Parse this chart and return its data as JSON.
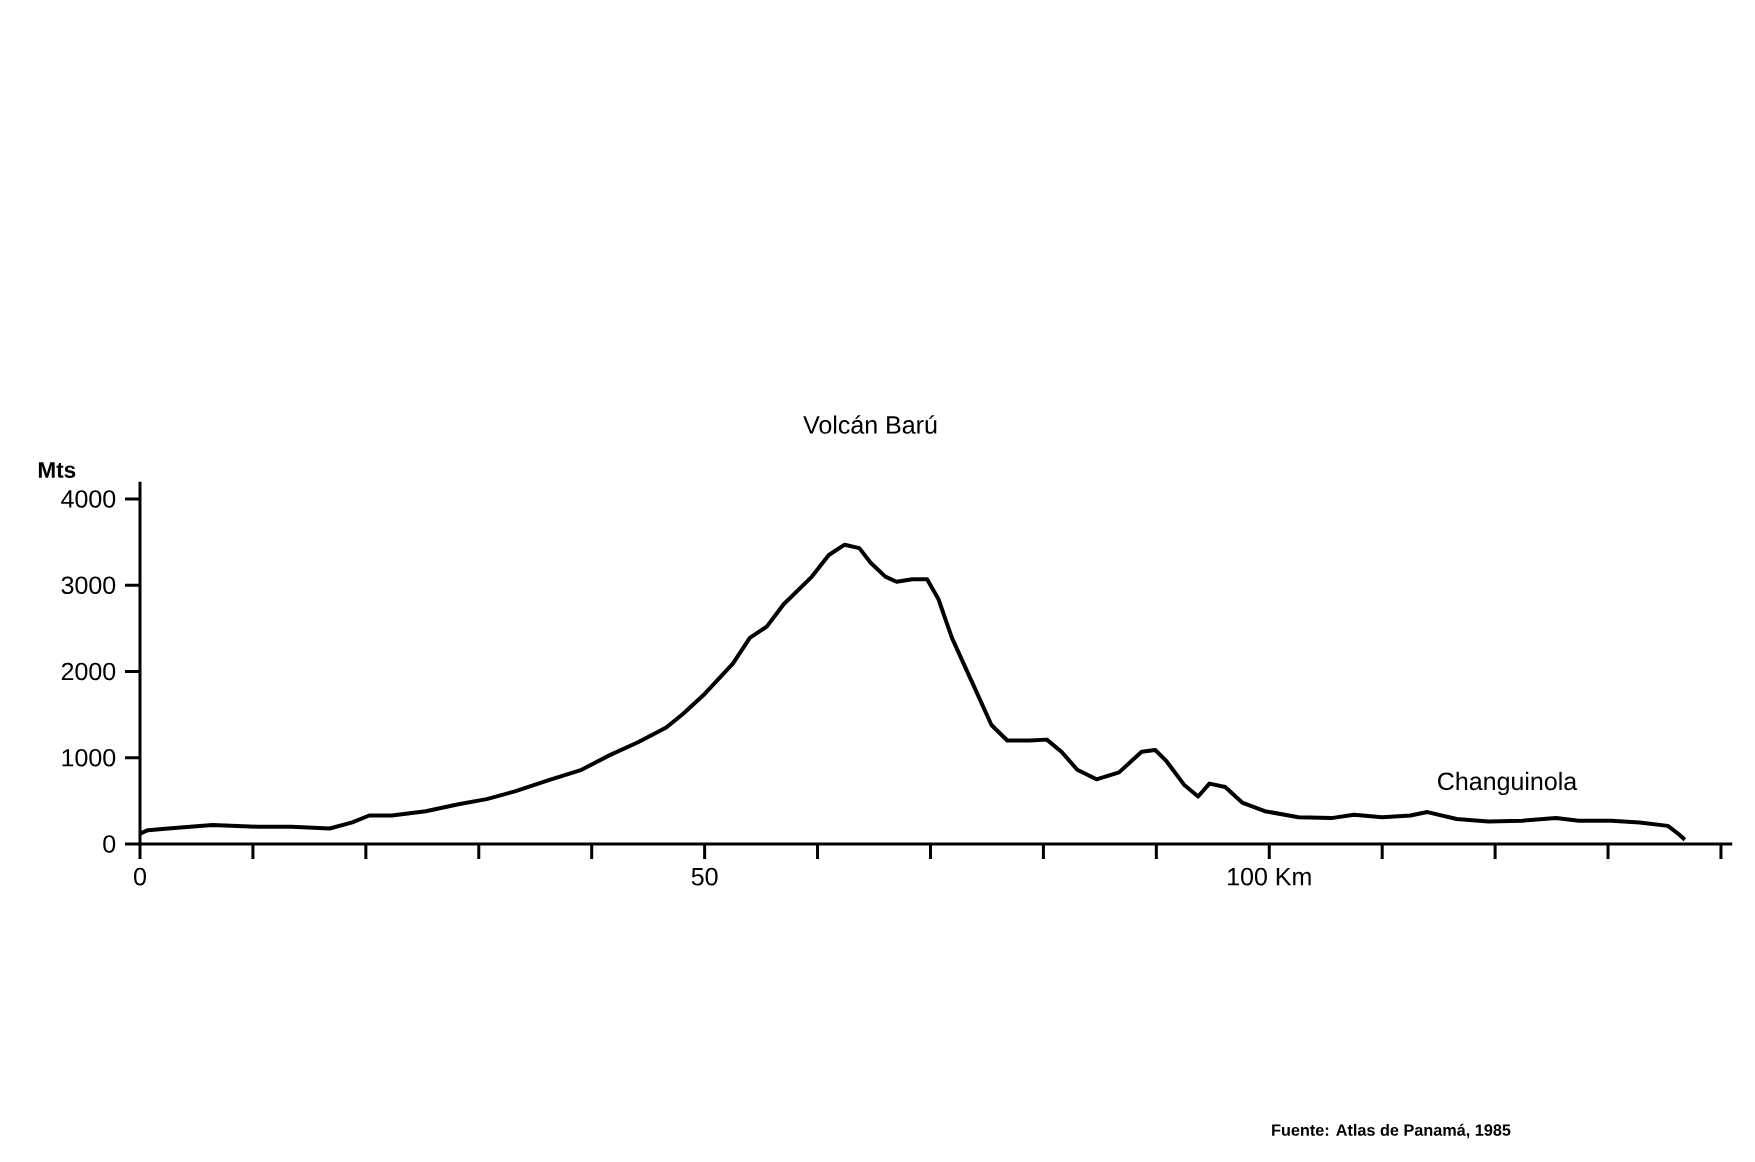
{
  "chart_data": {
    "type": "line",
    "ylabel": "Mts",
    "color": "#000000",
    "x": [
      0,
      0.7,
      2.5,
      6.4,
      10.4,
      13.4,
      16.8,
      18.8,
      20.3,
      22.3,
      25.3,
      28.2,
      30.7,
      33.2,
      36.2,
      39.1,
      41.6,
      44.1,
      46.6,
      48.1,
      50,
      52.5,
      54,
      55.5,
      57,
      59.5,
      61,
      62.4,
      63.7,
      64.7,
      66,
      67,
      68.4,
      69.7,
      70.7,
      71.9,
      73.7,
      75.4,
      76.8,
      78.8,
      80.3,
      81.6,
      83,
      84.7,
      86.7,
      88.7,
      89.9,
      90.9,
      92.5,
      93.7,
      94.7,
      96.1,
      97.6,
      99.6,
      102.6,
      105.5,
      107.5,
      110,
      112.5,
      114,
      116.6,
      119.4,
      122.4,
      125.4,
      127.4,
      130.3,
      132.8,
      135.3,
      136.3,
      136.8
    ],
    "values": [
      120,
      160,
      180,
      220,
      200,
      200,
      180,
      250,
      330,
      330,
      380,
      460,
      520,
      610,
      740,
      860,
      1030,
      1180,
      1350,
      1510,
      1740,
      2090,
      2390,
      2520,
      2780,
      3100,
      3350,
      3470,
      3430,
      3260,
      3100,
      3040,
      3070,
      3070,
      2840,
      2390,
      1870,
      1380,
      1200,
      1200,
      1210,
      1070,
      860,
      750,
      830,
      1070,
      1090,
      960,
      680,
      550,
      700,
      660,
      480,
      380,
      310,
      300,
      340,
      310,
      330,
      370,
      290,
      260,
      270,
      300,
      270,
      270,
      250,
      210,
      110,
      50
    ],
    "xlim": [
      0,
      141
    ],
    "ylim": [
      0,
      4200
    ],
    "xticks": [
      0,
      {
        "value": 10,
        "label": null
      },
      {
        "value": 20,
        "label": null
      },
      {
        "value": 30,
        "label": null
      },
      {
        "value": 40,
        "label": null
      },
      50,
      {
        "value": 60,
        "label": null
      },
      {
        "value": 70,
        "label": null
      },
      {
        "value": 80,
        "label": null
      },
      {
        "value": 90,
        "label": null
      },
      {
        "value": 100,
        "label": "100 Km"
      },
      {
        "value": 110,
        "label": null
      },
      {
        "value": 120,
        "label": null
      },
      {
        "value": 130,
        "label": null
      },
      {
        "value": 140,
        "label": null
      }
    ],
    "yticks": [
      0,
      1000,
      2000,
      3000,
      4000
    ],
    "annotations": [
      "Volcán  Barú",
      "Changuinola",
      "Fuente: Atlas de Panamá, 1985"
    ]
  }
}
